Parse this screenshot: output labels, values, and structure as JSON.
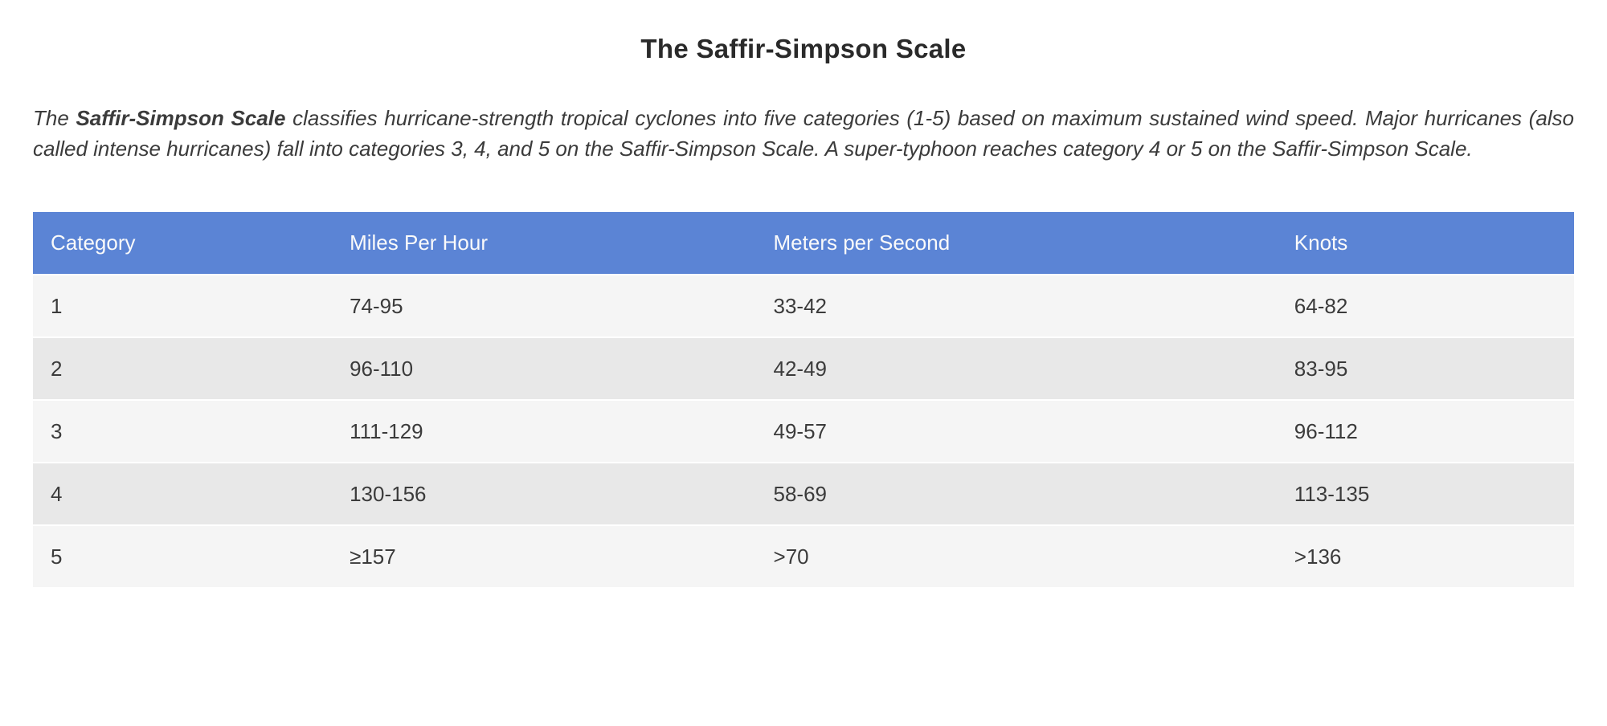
{
  "page": {
    "title": "The Saffir-Simpson Scale"
  },
  "intro": {
    "text_before_bold": "The ",
    "bold_text": "Saffir-Simpson Scale",
    "text_after_bold": " classifies hurricane-strength tropical cyclones into five categories (1-5) based on maximum sustained wind speed. Major hurricanes (also called intense hurricanes) fall into categories 3, 4, and 5 on the Saffir-Simpson Scale. A super-typhoon reaches category 4 or 5 on the Saffir-Simpson Scale."
  },
  "table": {
    "headers": [
      "Category",
      "Miles Per Hour",
      "Meters per Second",
      "Knots"
    ],
    "rows": [
      [
        "1",
        "74-95",
        "33-42",
        "64-82"
      ],
      [
        "2",
        "96-110",
        "42-49",
        "83-95"
      ],
      [
        "3",
        "111-129",
        "49-57",
        "96-112"
      ],
      [
        "4",
        "130-156",
        "58-69",
        "113-135"
      ],
      [
        "5",
        "≥157",
        ">70",
        ">136"
      ]
    ]
  },
  "colors": {
    "header_bg": "#5b84d5",
    "header_text": "#fafafa",
    "row_odd_bg": "#f5f5f5",
    "row_even_bg": "#e8e8e8",
    "title_text": "#2a2a2a",
    "body_text": "#3b3b3b"
  }
}
